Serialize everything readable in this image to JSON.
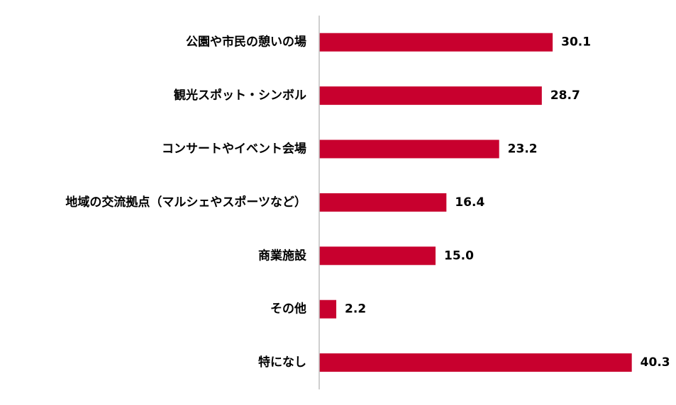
{
  "chart_data": {
    "type": "bar",
    "orientation": "horizontal",
    "categories": [
      "公園や市民の憩いの場",
      "観光スポット・シンボル",
      "コンサートやイベント会場",
      "地域の交流拠点（マルシェやスポーツなど）",
      "商業施設",
      "その他",
      "特になし"
    ],
    "values": [
      30.1,
      28.7,
      23.2,
      16.4,
      15.0,
      2.2,
      40.3
    ],
    "value_labels": [
      "30.1",
      "28.7",
      "23.2",
      "16.4",
      "15.0",
      "2.2",
      "40.3"
    ],
    "xlim": [
      0,
      46
    ],
    "bar_color": "#c8002e",
    "axis_color": "#bfbfbf",
    "grid": false,
    "title": "",
    "xlabel": "",
    "ylabel": ""
  }
}
